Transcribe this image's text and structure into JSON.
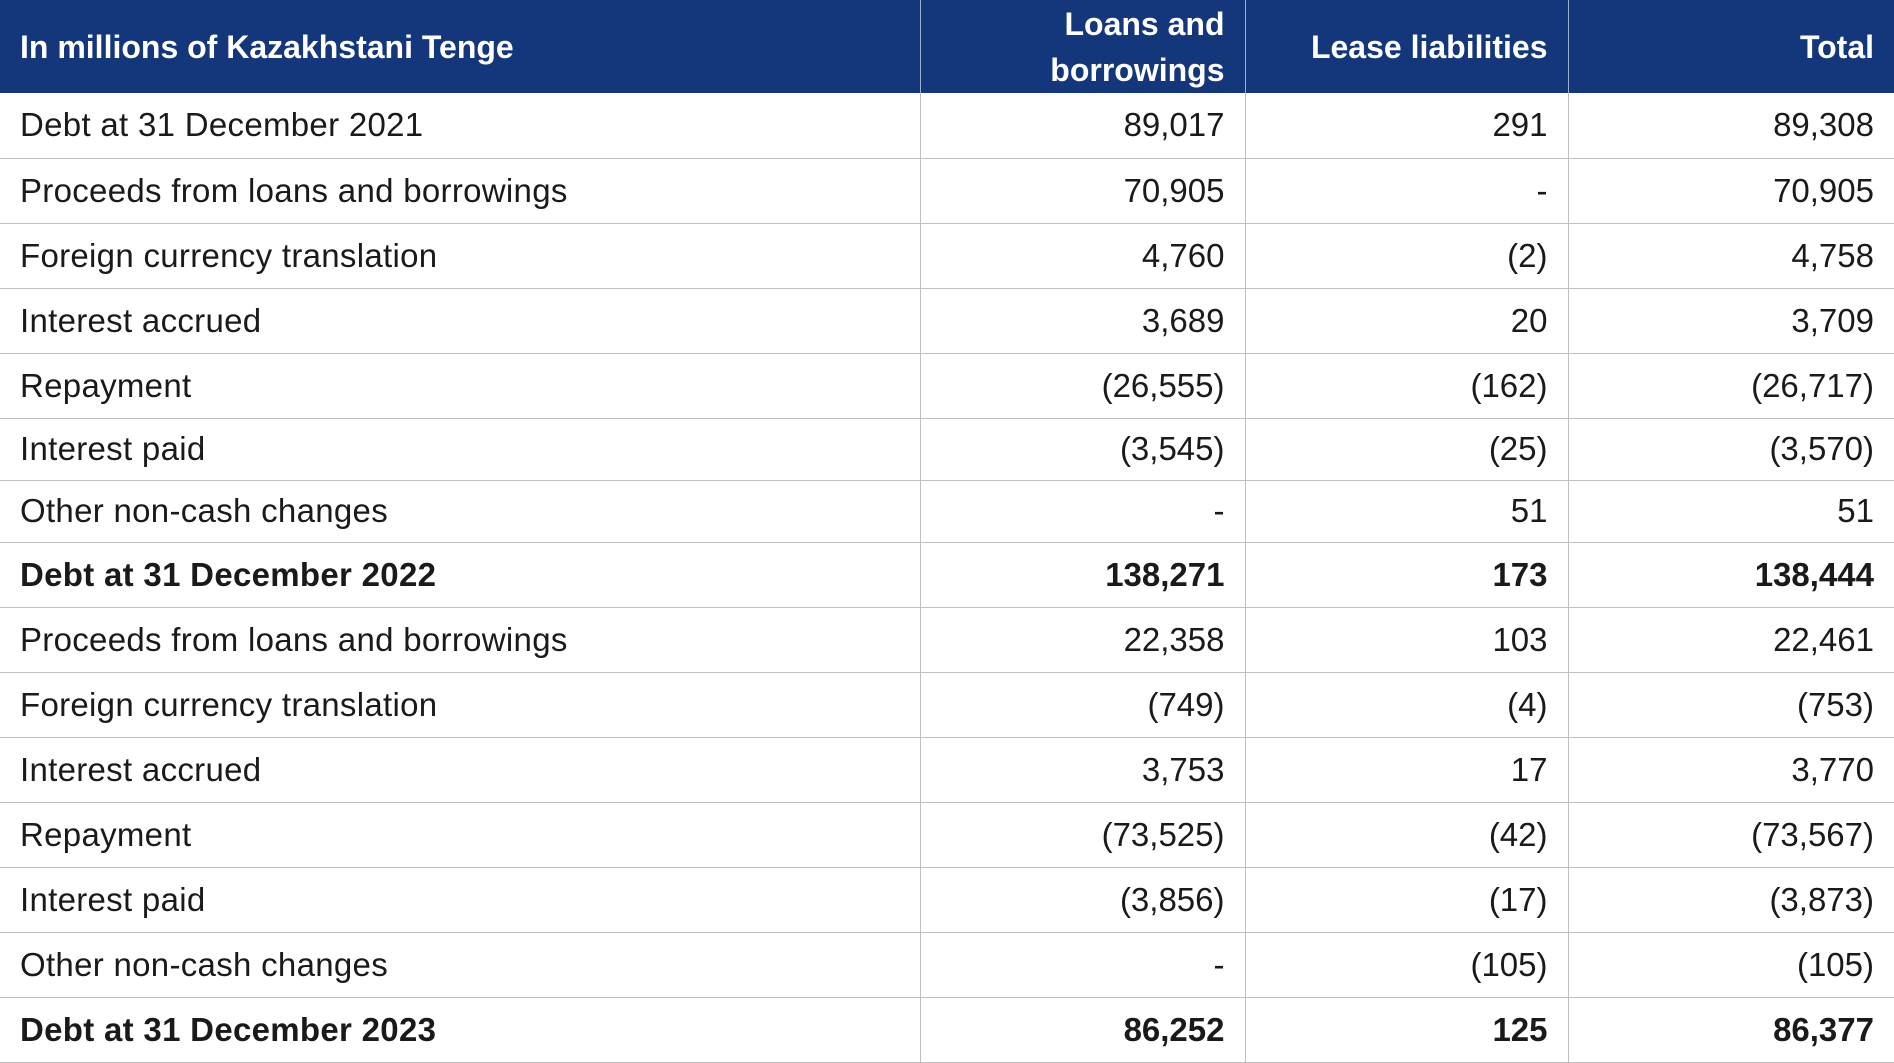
{
  "table": {
    "headers": [
      "In millions of Kazakhstani Tenge",
      "Loans and borrowings",
      "Lease liabilities",
      "Total"
    ],
    "rows": [
      {
        "label": "Debt at 31 December 2021",
        "loans": "89,017",
        "lease": "291",
        "total": "89,308",
        "bold": false
      },
      {
        "label": "Proceeds from loans and borrowings",
        "loans": "70,905",
        "lease": "-",
        "total": "70,905",
        "bold": false
      },
      {
        "label": "Foreign currency translation",
        "loans": "4,760",
        "lease": "(2)",
        "total": "4,758",
        "bold": false
      },
      {
        "label": "Interest accrued",
        "loans": "3,689",
        "lease": "20",
        "total": "3,709",
        "bold": false
      },
      {
        "label": "Repayment",
        "loans": "(26,555)",
        "lease": "(162)",
        "total": "(26,717)",
        "bold": false
      },
      {
        "label": "Interest paid",
        "loans": "(3,545)",
        "lease": "(25)",
        "total": "(3,570)",
        "bold": false
      },
      {
        "label": "Other non-cash changes",
        "loans": "-",
        "lease": "51",
        "total": "51",
        "bold": false
      },
      {
        "label": "Debt at 31 December 2022",
        "loans": "138,271",
        "lease": "173",
        "total": "138,444",
        "bold": true
      },
      {
        "label": "Proceeds from loans and borrowings",
        "loans": "22,358",
        "lease": "103",
        "total": "22,461",
        "bold": false
      },
      {
        "label": "Foreign currency translation",
        "loans": "(749)",
        "lease": "(4)",
        "total": "(753)",
        "bold": false
      },
      {
        "label": "Interest accrued",
        "loans": "3,753",
        "lease": "17",
        "total": "3,770",
        "bold": false
      },
      {
        "label": "Repayment",
        "loans": "(73,525)",
        "lease": "(42)",
        "total": "(73,567)",
        "bold": false
      },
      {
        "label": "Interest paid",
        "loans": "(3,856)",
        "lease": "(17)",
        "total": "(3,873)",
        "bold": false
      },
      {
        "label": "Other non-cash changes",
        "loans": "-",
        "lease": "(105)",
        "total": "(105)",
        "bold": false
      },
      {
        "label": "Debt at 31 December 2023",
        "loans": "86,252",
        "lease": "125",
        "total": "86,377",
        "bold": true
      }
    ]
  },
  "colors": {
    "header_bg": "#14367a",
    "header_text": "#ffffff",
    "grid": "#bfbfbf"
  }
}
